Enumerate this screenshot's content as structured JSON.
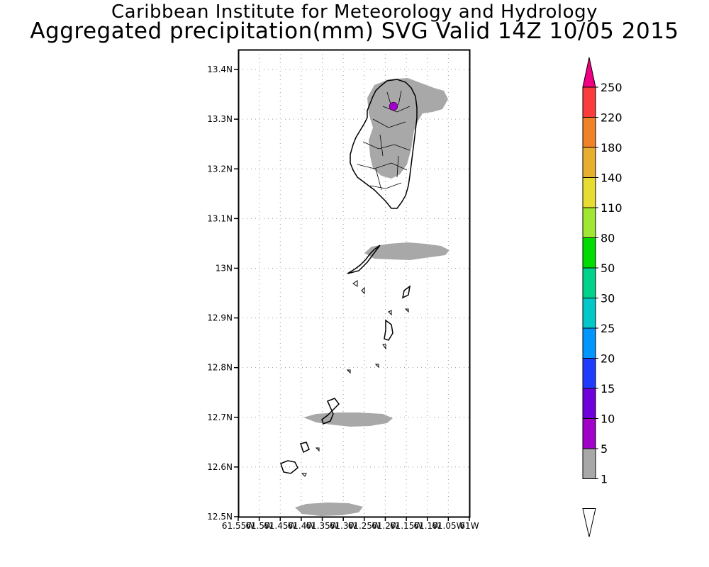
{
  "title": {
    "line1": "Caribbean Institute for Meteorology and Hydrology",
    "line2": "Aggregated precipitation(mm) SVG Valid 14Z 10/05 2015"
  },
  "map": {
    "lat_labels": [
      "13.4N",
      "13.3N",
      "13.2N",
      "13.1N",
      "13N",
      "12.9N",
      "12.8N",
      "12.7N",
      "12.6N",
      "12.5N"
    ],
    "lon_labels": [
      "61.55W",
      "61.5W",
      "61.45W",
      "61.4W",
      "61.35W",
      "61.3W",
      "61.25W",
      "61.2W",
      "61.15W",
      "61.1W",
      "61.05W",
      "61W"
    ],
    "lat_range": [
      12.5,
      13.44
    ],
    "lon_range": [
      -61.55,
      -61.0
    ],
    "grid": "dotted"
  },
  "colorbar": {
    "labels": [
      "1",
      "5",
      "10",
      "15",
      "20",
      "25",
      "30",
      "50",
      "80",
      "110",
      "140",
      "180",
      "220",
      "250"
    ],
    "colors": [
      "#a8a8a8",
      "#a000c8",
      "#6e00dc",
      "#1e3cff",
      "#0096ff",
      "#00c8c8",
      "#00d28c",
      "#00dc00",
      "#a0e632",
      "#e6dc32",
      "#e6af2d",
      "#f08228",
      "#fa3c3c",
      "#f00082"
    ]
  }
}
